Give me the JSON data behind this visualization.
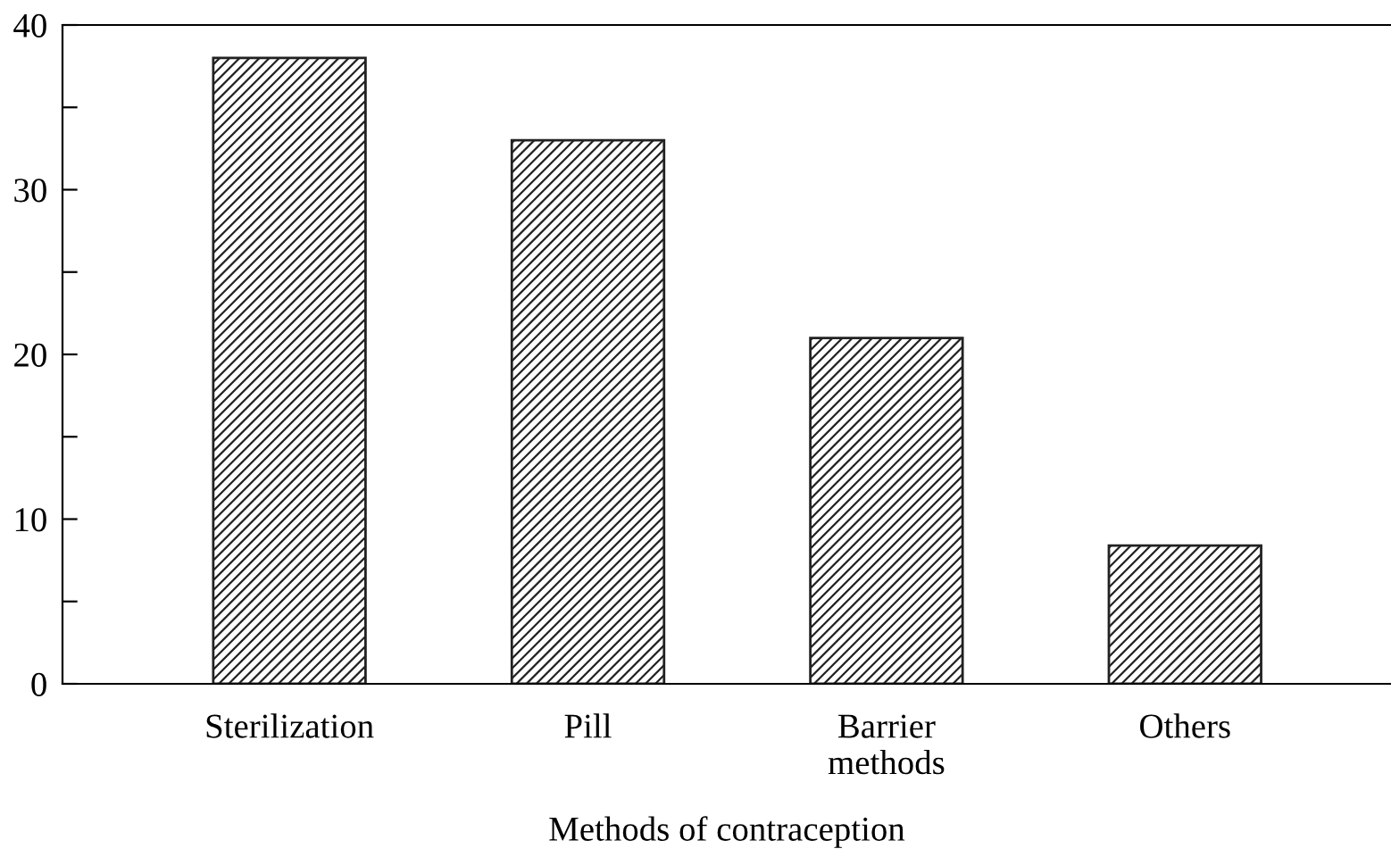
{
  "chart_data": {
    "type": "bar",
    "xlabel": "Methods of contraception",
    "categories": [
      "Sterilization",
      "Pill",
      "Barrier\nmethods",
      "Others"
    ],
    "values": [
      38,
      33,
      21,
      8.4
    ],
    "color": "#222222",
    "ylim": [
      0,
      40
    ],
    "yticks": [
      0,
      {
        "value": 5,
        "label": null
      },
      10,
      {
        "value": 15,
        "label": null
      },
      20,
      {
        "value": 25,
        "label": null
      },
      30,
      {
        "value": 35,
        "label": null
      },
      40
    ],
    "grid": false
  }
}
